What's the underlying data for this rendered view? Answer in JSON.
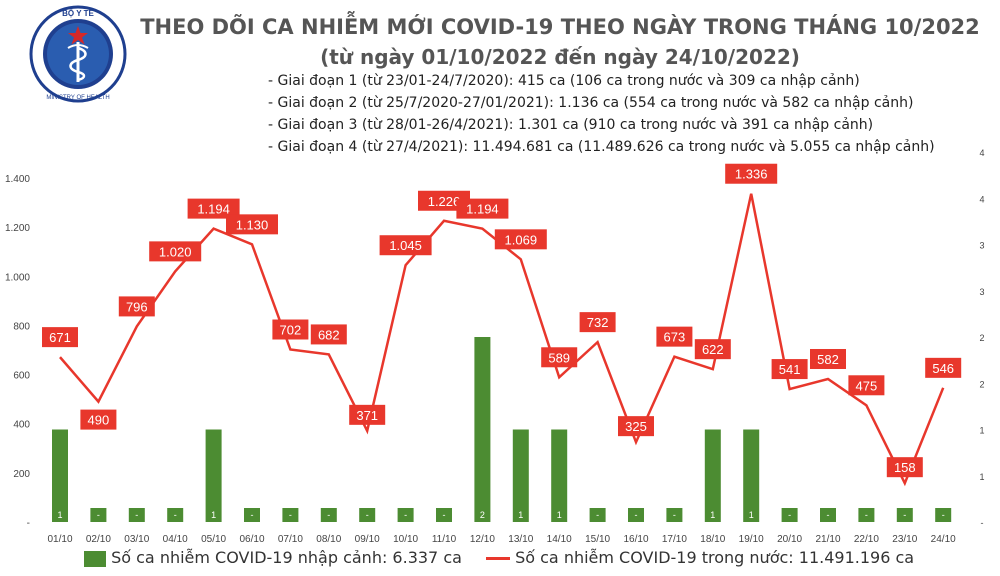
{
  "header": {
    "title": "THEO DÕI CA NHIỄM MỚI COVID-19 THEO NGÀY TRONG THÁNG 10/2022",
    "subtitle": "(từ ngày 01/10/2022 đến ngày 24/10/2022)",
    "phases": [
      "- Giai đoạn 1 (từ 23/01-24/7/2020): 415 ca (106 ca trong nước và 309 ca nhập cảnh)",
      "- Giai đoạn 2 (từ 25/7/2020-27/01/2021): 1.136 ca (554 ca trong nước và 582 ca nhập cảnh)",
      "- Giai đoạn 3 (từ 28/01-26/4/2021): 1.301 ca (910 ca trong nước và 391 ca nhập cảnh)",
      "- Giai đoạn 4 (từ 27/4/2021): 11.494.681 ca (11.489.626 ca trong nước và 5.055 ca nhập cảnh)"
    ]
  },
  "logo": {
    "text_top": "BỘ Y TẾ",
    "text_bottom": "MINISTRY OF HEALTH",
    "colors": {
      "ring": "#1f3f8f",
      "star": "#d62828",
      "inner": "#2a5db0"
    }
  },
  "legend": {
    "imported": "Số ca nhiễm COVID-19 nhập cảnh: 6.337 ca",
    "domestic": "Số ca nhiễm COVID-19 trong nước: 11.491.196 ca"
  },
  "colors": {
    "line": "#e8372c",
    "bar": "#4c8c32",
    "label_bg": "#e8372c",
    "axis_text": "#444444"
  },
  "chart_data": {
    "type": "bar+line",
    "categories": [
      "01/10",
      "02/10",
      "03/10",
      "04/10",
      "05/10",
      "06/10",
      "07/10",
      "08/10",
      "09/10",
      "10/10",
      "11/10",
      "12/10",
      "13/10",
      "14/10",
      "15/10",
      "16/10",
      "17/10",
      "18/10",
      "19/10",
      "20/10",
      "21/10",
      "22/10",
      "23/10",
      "24/10"
    ],
    "series": [
      {
        "type": "line",
        "axis": "left",
        "values": [
          671,
          490,
          796,
          1020,
          1194,
          1130,
          702,
          682,
          371,
          1045,
          1226,
          1194,
          1069,
          589,
          732,
          325,
          673,
          622,
          1336,
          541,
          582,
          475,
          158,
          546
        ],
        "labels": [
          "671",
          "490",
          "796",
          "1.020",
          "1.194",
          "1.130",
          "702",
          "682",
          "371",
          "1.045",
          "1.226",
          "1.194",
          "1.069",
          "589",
          "732",
          "325",
          "673",
          "622",
          "1.336",
          "541",
          "582",
          "475",
          "158",
          "546"
        ]
      },
      {
        "type": "bar",
        "axis": "right",
        "values": [
          1,
          0,
          0,
          0,
          1,
          0,
          0,
          0,
          0,
          0,
          0,
          2,
          1,
          1,
          0,
          0,
          0,
          1,
          1,
          0,
          0,
          0,
          0,
          0
        ],
        "labels": [
          "1",
          "-",
          "-",
          "-",
          "1",
          "-",
          "-",
          "-",
          "-",
          "-",
          "-",
          "2",
          "1",
          "1",
          "-",
          "-",
          "-",
          "1",
          "1",
          "-",
          "-",
          "-",
          "-",
          "-"
        ]
      }
    ],
    "left_axis": {
      "ticks": [
        0,
        200,
        400,
        600,
        800,
        1000,
        1200,
        1400
      ],
      "tick_labels": [
        "-",
        "200",
        "400",
        "600",
        "800",
        "1.000",
        "1.200",
        "1.400"
      ],
      "ylim": [
        0,
        1400
      ]
    },
    "right_axis": {
      "ticks": [
        0,
        1,
        2,
        3,
        4
      ],
      "tick_labels": [
        "-",
        "1",
        "2",
        "3",
        "4"
      ],
      "ylim": [
        0,
        4
      ]
    },
    "grid": false,
    "legend_position": "bottom"
  }
}
